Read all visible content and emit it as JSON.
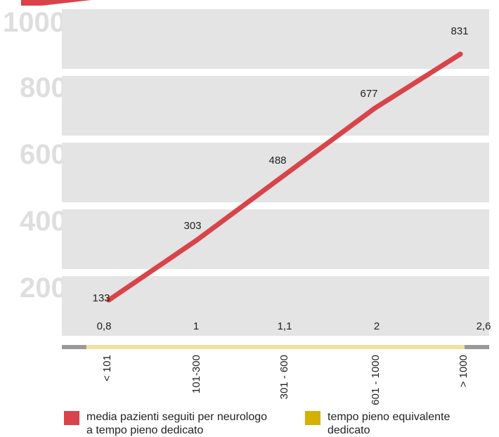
{
  "chart_data": {
    "type": "line",
    "categories": [
      "< 101",
      "101-300",
      "301 - 600",
      "601 - 1000",
      "> 1000"
    ],
    "series": [
      {
        "name": "media pazienti seguiti per neurologo a tempo pieno dedicato",
        "values": [
          133,
          303,
          488,
          677,
          831
        ],
        "color": "#d9434a"
      },
      {
        "name": "tempo pieno equivalente dedicato",
        "values": [
          0.8,
          1,
          1.1,
          2,
          2.6
        ],
        "color": "#d6b000"
      }
    ],
    "y_ticks": [
      "200",
      "400",
      "600",
      "800",
      "1000"
    ],
    "ylim": [
      200,
      1000
    ],
    "grid": true,
    "legend_position": "bottom",
    "title": "",
    "xlabel": "",
    "ylabel": ""
  },
  "colors": {
    "band": "#e4e4e4",
    "axis_bar": "#f0e0a0",
    "axis_bar_ends": "#999999",
    "accent_tab": "#d9434a"
  }
}
